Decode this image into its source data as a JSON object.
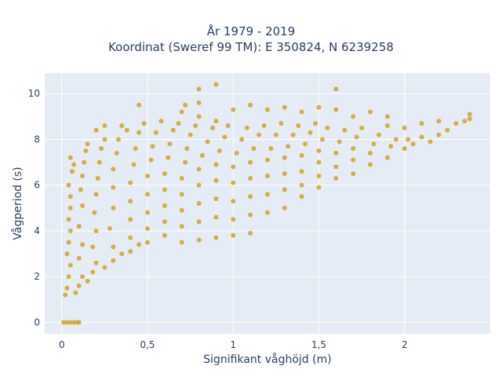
{
  "chart_data": {
    "type": "scatter",
    "title_lines": [
      "År 1979 - 2019",
      "Koordinat (Sweref 99 TM): E 350824, N 6239258"
    ],
    "xlabel": "Signifikant våghöjd (m)",
    "ylabel": "Vågperiod (s)",
    "xlim": [
      -0.1,
      2.5
    ],
    "ylim": [
      -0.5,
      10.9
    ],
    "x_ticks": [
      0,
      0.5,
      1,
      1.5,
      2
    ],
    "x_tick_labels": [
      "0",
      "0,5",
      "1",
      "1,5",
      "2"
    ],
    "y_ticks": [
      0,
      2,
      4,
      6,
      8,
      10
    ],
    "y_tick_labels": [
      "0",
      "2",
      "4",
      "6",
      "8",
      "10"
    ],
    "grid": true,
    "colors": {
      "points": "#d4a321",
      "plot_bg": "#e5ecf6",
      "grid": "#ffffff",
      "text": "#2a3f5f"
    },
    "points": [
      [
        0.01,
        0.0
      ],
      [
        0.03,
        0.0
      ],
      [
        0.05,
        0.0
      ],
      [
        0.07,
        0.0
      ],
      [
        0.09,
        0.0
      ],
      [
        0.1,
        0.0
      ],
      [
        0.02,
        1.2
      ],
      [
        0.03,
        1.5
      ],
      [
        0.04,
        2.0
      ],
      [
        0.05,
        2.5
      ],
      [
        0.03,
        3.0
      ],
      [
        0.04,
        3.5
      ],
      [
        0.05,
        4.0
      ],
      [
        0.04,
        4.5
      ],
      [
        0.05,
        5.0
      ],
      [
        0.05,
        5.5
      ],
      [
        0.04,
        6.0
      ],
      [
        0.06,
        6.6
      ],
      [
        0.07,
        6.9
      ],
      [
        0.05,
        7.2
      ],
      [
        0.08,
        1.3
      ],
      [
        0.1,
        1.6
      ],
      [
        0.12,
        2.0
      ],
      [
        0.1,
        2.8
      ],
      [
        0.12,
        3.4
      ],
      [
        0.1,
        4.2
      ],
      [
        0.12,
        5.1
      ],
      [
        0.11,
        5.8
      ],
      [
        0.12,
        6.4
      ],
      [
        0.13,
        7.0
      ],
      [
        0.14,
        7.5
      ],
      [
        0.15,
        7.8
      ],
      [
        0.15,
        1.8
      ],
      [
        0.18,
        2.2
      ],
      [
        0.2,
        2.6
      ],
      [
        0.18,
        3.3
      ],
      [
        0.2,
        4.0
      ],
      [
        0.19,
        4.8
      ],
      [
        0.2,
        5.6
      ],
      [
        0.21,
        6.3
      ],
      [
        0.22,
        7.0
      ],
      [
        0.23,
        7.6
      ],
      [
        0.25,
        8.0
      ],
      [
        0.2,
        8.4
      ],
      [
        0.25,
        8.6
      ],
      [
        0.25,
        2.4
      ],
      [
        0.3,
        2.7
      ],
      [
        0.3,
        3.3
      ],
      [
        0.28,
        4.1
      ],
      [
        0.3,
        5.0
      ],
      [
        0.3,
        5.9
      ],
      [
        0.3,
        6.7
      ],
      [
        0.32,
        7.4
      ],
      [
        0.33,
        8.0
      ],
      [
        0.35,
        8.6
      ],
      [
        0.38,
        8.4
      ],
      [
        0.35,
        3.0
      ],
      [
        0.4,
        3.1
      ],
      [
        0.4,
        3.7
      ],
      [
        0.4,
        4.5
      ],
      [
        0.4,
        5.3
      ],
      [
        0.4,
        6.1
      ],
      [
        0.42,
        6.9
      ],
      [
        0.43,
        7.6
      ],
      [
        0.45,
        8.3
      ],
      [
        0.48,
        8.7
      ],
      [
        0.45,
        9.5
      ],
      [
        0.45,
        3.4
      ],
      [
        0.5,
        3.5
      ],
      [
        0.5,
        4.1
      ],
      [
        0.5,
        4.8
      ],
      [
        0.5,
        5.6
      ],
      [
        0.5,
        6.4
      ],
      [
        0.52,
        7.1
      ],
      [
        0.53,
        7.7
      ],
      [
        0.55,
        8.3
      ],
      [
        0.58,
        8.8
      ],
      [
        0.6,
        3.8
      ],
      [
        0.6,
        4.4
      ],
      [
        0.6,
        5.1
      ],
      [
        0.6,
        5.8
      ],
      [
        0.6,
        6.5
      ],
      [
        0.62,
        7.2
      ],
      [
        0.63,
        7.8
      ],
      [
        0.65,
        8.4
      ],
      [
        0.68,
        8.7
      ],
      [
        0.7,
        9.2
      ],
      [
        0.72,
        9.5
      ],
      [
        0.7,
        3.5
      ],
      [
        0.7,
        4.2
      ],
      [
        0.7,
        4.9
      ],
      [
        0.7,
        5.6
      ],
      [
        0.7,
        6.3
      ],
      [
        0.72,
        7.0
      ],
      [
        0.73,
        7.6
      ],
      [
        0.75,
        8.2
      ],
      [
        0.78,
        8.6
      ],
      [
        0.8,
        9.0
      ],
      [
        0.8,
        9.6
      ],
      [
        0.8,
        3.6
      ],
      [
        0.8,
        4.4
      ],
      [
        0.8,
        5.2
      ],
      [
        0.8,
        6.0
      ],
      [
        0.8,
        6.7
      ],
      [
        0.82,
        7.3
      ],
      [
        0.85,
        7.9
      ],
      [
        0.88,
        8.5
      ],
      [
        0.9,
        8.8
      ],
      [
        0.9,
        3.7
      ],
      [
        0.9,
        4.6
      ],
      [
        0.9,
        5.4
      ],
      [
        0.9,
        6.2
      ],
      [
        0.9,
        6.9
      ],
      [
        0.92,
        7.5
      ],
      [
        0.95,
        8.1
      ],
      [
        0.97,
        8.6
      ],
      [
        0.8,
        10.2
      ],
      [
        0.9,
        10.4
      ],
      [
        1.0,
        3.8
      ],
      [
        1.0,
        4.5
      ],
      [
        1.0,
        5.3
      ],
      [
        1.0,
        6.1
      ],
      [
        1.0,
        6.8
      ],
      [
        1.02,
        7.4
      ],
      [
        1.05,
        8.0
      ],
      [
        1.08,
        8.5
      ],
      [
        1.0,
        9.3
      ],
      [
        1.1,
        9.5
      ],
      [
        1.1,
        3.9
      ],
      [
        1.1,
        4.7
      ],
      [
        1.1,
        5.5
      ],
      [
        1.1,
        6.3
      ],
      [
        1.1,
        7.0
      ],
      [
        1.12,
        7.6
      ],
      [
        1.15,
        8.2
      ],
      [
        1.18,
        8.6
      ],
      [
        1.2,
        9.3
      ],
      [
        1.2,
        4.8
      ],
      [
        1.2,
        5.6
      ],
      [
        1.2,
        6.4
      ],
      [
        1.2,
        7.1
      ],
      [
        1.22,
        7.6
      ],
      [
        1.25,
        8.2
      ],
      [
        1.28,
        8.7
      ],
      [
        1.3,
        9.4
      ],
      [
        1.3,
        5.0
      ],
      [
        1.3,
        5.8
      ],
      [
        1.3,
        6.5
      ],
      [
        1.3,
        7.2
      ],
      [
        1.32,
        7.7
      ],
      [
        1.35,
        8.2
      ],
      [
        1.38,
        8.6
      ],
      [
        1.4,
        9.2
      ],
      [
        1.4,
        5.5
      ],
      [
        1.4,
        6.0
      ],
      [
        1.4,
        6.6
      ],
      [
        1.4,
        7.3
      ],
      [
        1.42,
        7.8
      ],
      [
        1.45,
        8.3
      ],
      [
        1.48,
        8.7
      ],
      [
        1.5,
        9.4
      ],
      [
        1.5,
        5.9
      ],
      [
        1.5,
        6.4
      ],
      [
        1.5,
        7.0
      ],
      [
        1.5,
        7.5
      ],
      [
        1.52,
        8.0
      ],
      [
        1.55,
        8.5
      ],
      [
        1.6,
        9.3
      ],
      [
        1.6,
        10.2
      ],
      [
        1.6,
        6.3
      ],
      [
        1.6,
        6.8
      ],
      [
        1.6,
        7.4
      ],
      [
        1.62,
        7.9
      ],
      [
        1.65,
        8.4
      ],
      [
        1.7,
        9.0
      ],
      [
        1.7,
        6.5
      ],
      [
        1.7,
        7.1
      ],
      [
        1.7,
        7.6
      ],
      [
        1.72,
        8.1
      ],
      [
        1.75,
        8.5
      ],
      [
        1.8,
        9.2
      ],
      [
        1.8,
        6.9
      ],
      [
        1.8,
        7.4
      ],
      [
        1.82,
        7.8
      ],
      [
        1.85,
        8.2
      ],
      [
        1.9,
        8.6
      ],
      [
        1.9,
        9.0
      ],
      [
        1.9,
        7.2
      ],
      [
        1.92,
        7.7
      ],
      [
        1.95,
        8.0
      ],
      [
        2.0,
        8.5
      ],
      [
        2.0,
        7.6
      ],
      [
        2.02,
        8.0
      ],
      [
        2.05,
        7.8
      ],
      [
        2.1,
        8.1
      ],
      [
        2.1,
        8.7
      ],
      [
        2.15,
        7.9
      ],
      [
        2.2,
        8.2
      ],
      [
        2.2,
        8.8
      ],
      [
        2.25,
        8.4
      ],
      [
        2.3,
        8.7
      ],
      [
        2.35,
        8.8
      ],
      [
        2.38,
        9.1
      ],
      [
        2.38,
        8.9
      ]
    ]
  }
}
